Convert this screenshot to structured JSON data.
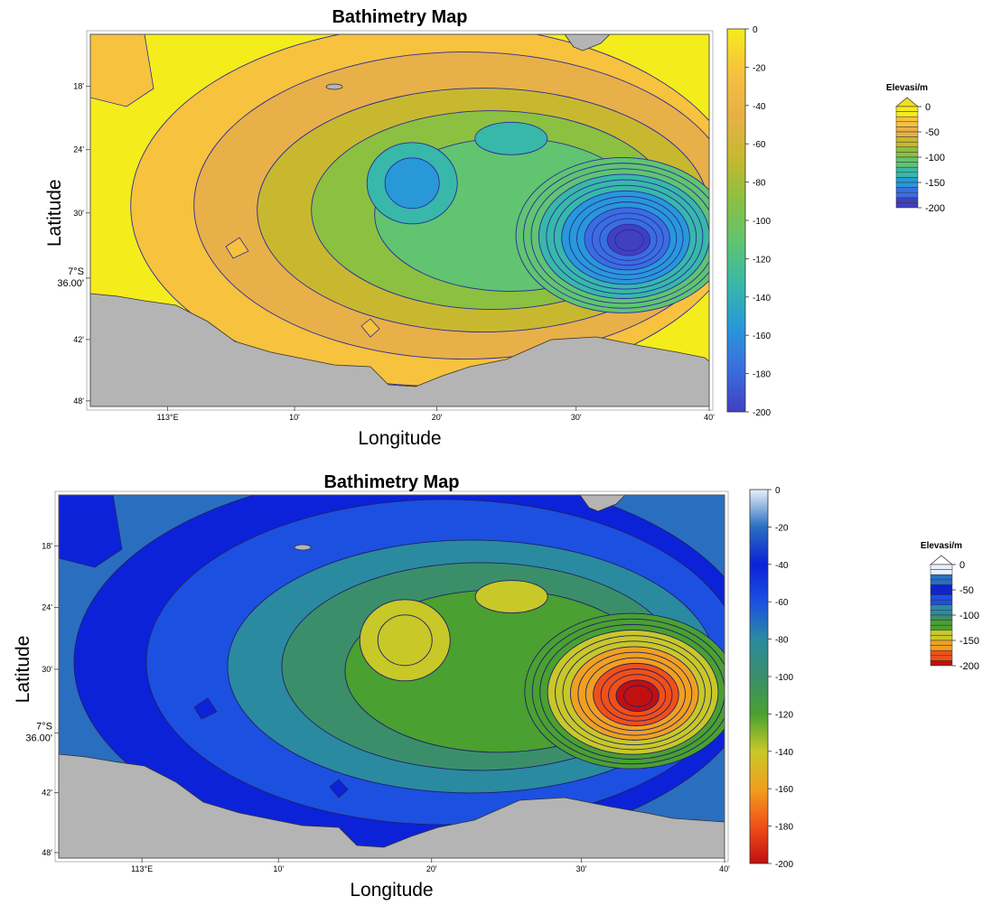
{
  "maps": [
    {
      "title": "Bathimetry Map",
      "xlabel": "Longitude",
      "ylabel": "Latitude",
      "lon_ticks": [
        "113°E",
        "10'",
        "20'",
        "30'",
        "40'"
      ],
      "lat_ticks": [
        "18'",
        "24'",
        "30'",
        "7°S\n36.00'",
        "42'",
        "48'"
      ],
      "colorbar_ticks": [
        "0",
        "-20",
        "-40",
        "-60",
        "-80",
        "-100",
        "-120",
        "-140",
        "-160",
        "-180",
        "-200"
      ],
      "legend": {
        "title": "Elevasi/m",
        "ticks": [
          "0",
          "-50",
          "-100",
          "-150",
          "-200"
        ],
        "cap_color": "#f0e020"
      },
      "colors": {
        "land": "#b4b4b4",
        "contour_line": "#2a2aa0",
        "ramp": [
          "#f5ec1c",
          "#f7c23e",
          "#e8b048",
          "#c8b830",
          "#8cc040",
          "#60c470",
          "#38b8a8",
          "#2898d8",
          "#3a6ee0",
          "#4040c0"
        ]
      }
    },
    {
      "title": "Bathimetry Map",
      "xlabel": "Longitude",
      "ylabel": "Latitude",
      "lon_ticks": [
        "113°E",
        "10'",
        "20'",
        "30'",
        "40'"
      ],
      "lat_ticks": [
        "18'",
        "24'",
        "30'",
        "7°S\n36.00'",
        "42'",
        "48'"
      ],
      "colorbar_ticks": [
        "0",
        "-20",
        "-40",
        "-60",
        "-80",
        "-100",
        "-120",
        "-140",
        "-160",
        "-180",
        "-200"
      ],
      "legend": {
        "title": "Elevasi/m",
        "ticks": [
          "0",
          "-50",
          "-100",
          "-150",
          "-200"
        ],
        "cap_color": "#ffffff"
      },
      "colors": {
        "land": "#b4b4b4",
        "contour_line": "#20206a",
        "ramp": [
          "#e8f0fa",
          "#2a6ec0",
          "#0c22d8",
          "#1c50e0",
          "#2a8aa0",
          "#3a8f6a",
          "#4aa030",
          "#c8c828",
          "#f0a020",
          "#f05018",
          "#c01010"
        ]
      }
    }
  ]
}
